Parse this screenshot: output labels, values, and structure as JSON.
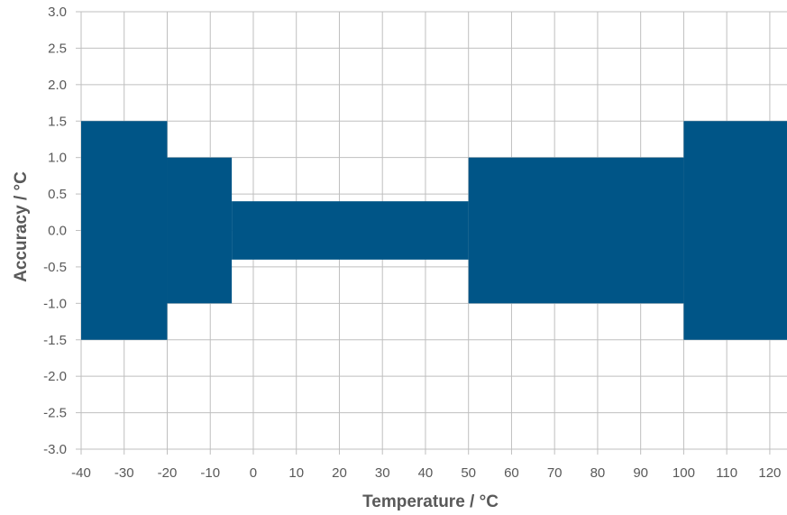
{
  "chart_data": {
    "type": "area",
    "title": "",
    "xlabel": "Temperature / °C",
    "ylabel": "Accuracy / °C",
    "xlim": [
      -40,
      124
    ],
    "ylim": [
      -3.0,
      3.0
    ],
    "x_ticks": [
      -40,
      -30,
      -20,
      -10,
      0,
      10,
      20,
      30,
      40,
      50,
      60,
      70,
      80,
      90,
      100,
      110,
      120
    ],
    "x_tick_labels": [
      "-40",
      "-30",
      "-20",
      "-10",
      "0",
      "10",
      "20",
      "30",
      "40",
      "50",
      "60",
      "70",
      "80",
      "90",
      "100",
      "110",
      "120"
    ],
    "y_ticks": [
      3.0,
      2.5,
      2.0,
      1.5,
      1.0,
      0.5,
      0.0,
      -0.5,
      -1.0,
      -1.5,
      -2.0,
      -2.5,
      -3.0
    ],
    "y_tick_labels": [
      "3.0",
      "2.5",
      "2.0",
      "1.5",
      "1.0",
      "0.5",
      "0.0",
      "-0.5",
      "-1.0",
      "-1.5",
      "-2.0",
      "-2.5",
      "-3.0"
    ],
    "grid": true,
    "legend": "none",
    "series": [
      {
        "color": "#005587",
        "bands": [
          {
            "x_start": -40,
            "x_end": -20,
            "upper": 1.5,
            "lower": -1.5
          },
          {
            "x_start": -20,
            "x_end": -5,
            "upper": 1.0,
            "lower": -1.0
          },
          {
            "x_start": -5,
            "x_end": 50,
            "upper": 0.4,
            "lower": -0.4
          },
          {
            "x_start": 50,
            "x_end": 100,
            "upper": 1.0,
            "lower": -1.0
          },
          {
            "x_start": 100,
            "x_end": 124,
            "upper": 1.5,
            "lower": -1.5
          }
        ]
      }
    ]
  }
}
